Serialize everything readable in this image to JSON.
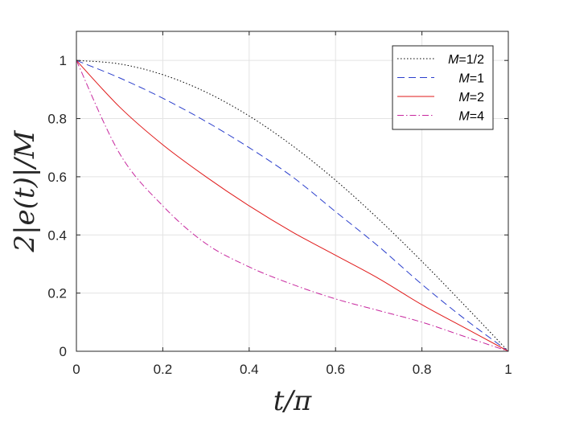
{
  "chart_data": {
    "type": "line",
    "title": "",
    "xlabel": "t/π",
    "ylabel": "2|e(t)|/M",
    "xlim": [
      0,
      1
    ],
    "ylim": [
      0,
      1.1
    ],
    "xticks": [
      0,
      0.2,
      0.4,
      0.6,
      0.8,
      1
    ],
    "yticks": [
      0,
      0.2,
      0.4,
      0.6,
      0.8,
      1
    ],
    "xtick_labels": [
      "0",
      "0.2",
      "0.4",
      "0.6",
      "0.8",
      "1"
    ],
    "ytick_labels": [
      "0",
      "0.2",
      "0.4",
      "0.6",
      "0.8",
      "1"
    ],
    "grid": true,
    "legend_position": "top-right",
    "series": [
      {
        "name": "M=1/2",
        "color": "#000000",
        "style": "dotted",
        "x": [
          0,
          0.1,
          0.2,
          0.3,
          0.4,
          0.5,
          0.6,
          0.7,
          0.8,
          0.9,
          1
        ],
        "y": [
          1,
          0.988,
          0.951,
          0.891,
          0.809,
          0.707,
          0.588,
          0.454,
          0.309,
          0.156,
          0
        ]
      },
      {
        "name": "M=1",
        "color": "#2b3fcc",
        "style": "dashed",
        "x": [
          0,
          0.1,
          0.2,
          0.3,
          0.4,
          0.5,
          0.6,
          0.7,
          0.8,
          0.9,
          1
        ],
        "y": [
          1,
          0.94,
          0.87,
          0.79,
          0.7,
          0.6,
          0.48,
          0.36,
          0.23,
          0.11,
          0
        ]
      },
      {
        "name": "M=2",
        "color": "#e01a1a",
        "style": "solid",
        "x": [
          0,
          0.1,
          0.2,
          0.3,
          0.4,
          0.5,
          0.6,
          0.7,
          0.8,
          0.9,
          1
        ],
        "y": [
          1,
          0.84,
          0.71,
          0.6,
          0.5,
          0.41,
          0.33,
          0.25,
          0.16,
          0.08,
          0
        ]
      },
      {
        "name": "M=4",
        "color": "#c7279e",
        "style": "dashdot",
        "x": [
          0,
          0.1,
          0.2,
          0.3,
          0.4,
          0.5,
          0.6,
          0.7,
          0.8,
          0.9,
          1
        ],
        "y": [
          1,
          0.68,
          0.5,
          0.37,
          0.29,
          0.23,
          0.18,
          0.14,
          0.1,
          0.05,
          0
        ]
      }
    ]
  }
}
